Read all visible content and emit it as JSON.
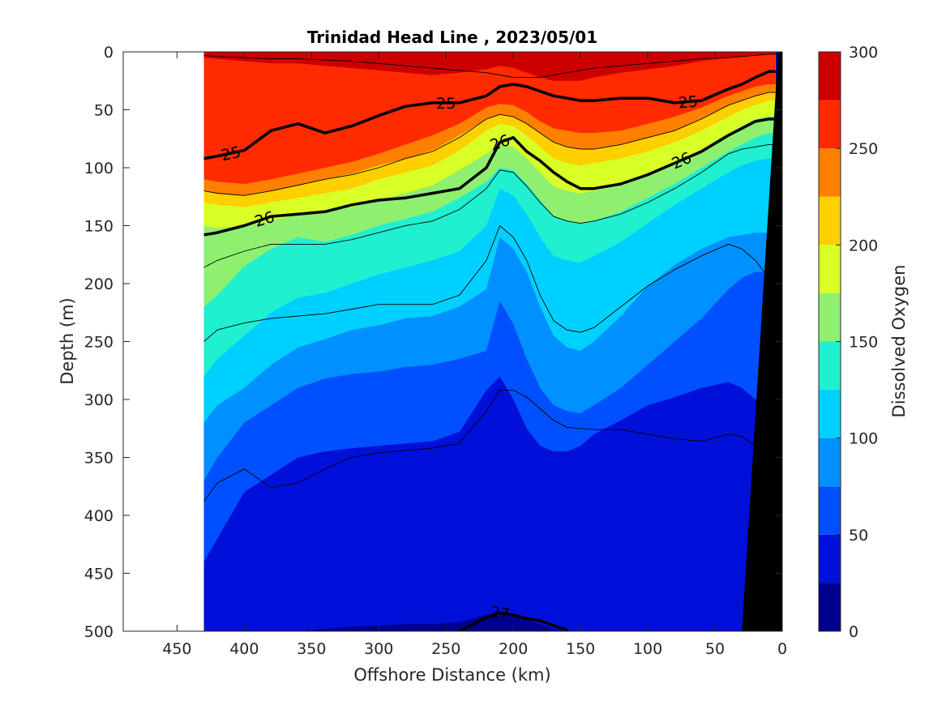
{
  "chart_data": {
    "type": "heatmap",
    "title": "Trinidad Head Line , 2023/05/01",
    "xlabel": "Offshore Distance (km)",
    "ylabel": "Depth (m)",
    "colorbar_label": "Dissolved Oxygen",
    "xlim": [
      490,
      0
    ],
    "ylim": [
      0,
      500
    ],
    "x_ticks": [
      450,
      400,
      350,
      300,
      250,
      200,
      150,
      100,
      50,
      0
    ],
    "x_tick_labels": [
      "450",
      "400",
      "350",
      "300",
      "250",
      "200",
      "150",
      "100",
      "50",
      "0"
    ],
    "y_ticks": [
      0,
      50,
      100,
      150,
      200,
      250,
      300,
      350,
      400,
      450,
      500
    ],
    "y_tick_labels": [
      "0",
      "50",
      "100",
      "150",
      "200",
      "250",
      "300",
      "350",
      "400",
      "450",
      "500"
    ],
    "colorbar_ticks": [
      0,
      50,
      100,
      150,
      200,
      250,
      300
    ],
    "colorbar_tick_labels": [
      "0",
      "50",
      "100",
      "150",
      "200",
      "250",
      "300"
    ],
    "color_levels": [
      0,
      25,
      50,
      75,
      100,
      125,
      150,
      175,
      200,
      225,
      250,
      275,
      300
    ],
    "level_colors": [
      "#00008f",
      "#0010d9",
      "#0050ff",
      "#0090ff",
      "#00d0ff",
      "#20f0d0",
      "#8ff070",
      "#d8ff26",
      "#ffd000",
      "#ff8000",
      "#ff2a00",
      "#cc0000"
    ],
    "data_xrange": [
      430,
      0
    ],
    "profile_distances": [
      430,
      420,
      400,
      380,
      360,
      340,
      320,
      300,
      280,
      260,
      240,
      220,
      210,
      200,
      190,
      180,
      170,
      160,
      150,
      140,
      120,
      100,
      80,
      60,
      40,
      30,
      20,
      10,
      5
    ],
    "oxygen_isolines": [
      {
        "level": 275,
        "depths": [
          5,
          6,
          8,
          10,
          10,
          12,
          14,
          16,
          18,
          20,
          18,
          15,
          12,
          14,
          18,
          22,
          25,
          25,
          25,
          22,
          18,
          15,
          12,
          8,
          5,
          4,
          3,
          2,
          2
        ]
      },
      {
        "level": 250,
        "depths": [
          110,
          112,
          114,
          110,
          105,
          100,
          95,
          88,
          80,
          72,
          62,
          48,
          45,
          46,
          52,
          60,
          66,
          68,
          70,
          70,
          68,
          62,
          56,
          48,
          38,
          34,
          30,
          28,
          28
        ]
      },
      {
        "level": 225,
        "depths": [
          120,
          122,
          124,
          120,
          115,
          110,
          105,
          98,
          92,
          85,
          72,
          58,
          54,
          56,
          62,
          70,
          78,
          82,
          84,
          84,
          80,
          74,
          68,
          58,
          46,
          42,
          38,
          35,
          35
        ]
      },
      {
        "level": 200,
        "depths": [
          130,
          132,
          134,
          130,
          126,
          122,
          118,
          110,
          104,
          98,
          85,
          68,
          62,
          64,
          72,
          82,
          92,
          96,
          98,
          96,
          92,
          86,
          78,
          68,
          56,
          50,
          46,
          42,
          42
        ]
      },
      {
        "level": 175,
        "depths": [
          150,
          152,
          150,
          146,
          140,
          138,
          134,
          128,
          122,
          115,
          102,
          88,
          80,
          82,
          92,
          104,
          116,
          120,
          122,
          120,
          114,
          106,
          96,
          84,
          70,
          64,
          58,
          55,
          55
        ]
      },
      {
        "level": 150,
        "depths": [
          220,
          210,
          185,
          170,
          160,
          164,
          158,
          150,
          144,
          138,
          126,
          112,
          100,
          102,
          114,
          128,
          142,
          146,
          148,
          146,
          138,
          126,
          114,
          100,
          86,
          80,
          74,
          70,
          70
        ]
      },
      {
        "level": 125,
        "depths": [
          280,
          265,
          245,
          225,
          212,
          208,
          200,
          192,
          186,
          180,
          172,
          150,
          118,
          124,
          140,
          160,
          176,
          180,
          182,
          176,
          164,
          148,
          132,
          118,
          104,
          98,
          94,
          92,
          92
        ]
      },
      {
        "level": 100,
        "depths": [
          320,
          305,
          290,
          270,
          255,
          248,
          240,
          236,
          230,
          228,
          220,
          205,
          160,
          170,
          190,
          220,
          245,
          255,
          258,
          250,
          228,
          202,
          184,
          170,
          160,
          158,
          156,
          156,
          156
        ]
      },
      {
        "level": 75,
        "depths": [
          370,
          350,
          320,
          305,
          290,
          282,
          278,
          276,
          272,
          270,
          265,
          258,
          215,
          235,
          265,
          290,
          305,
          310,
          312,
          305,
          290,
          270,
          250,
          230,
          205,
          195,
          190,
          190,
          190
        ]
      },
      {
        "level": 50,
        "depths": [
          440,
          420,
          380,
          365,
          350,
          345,
          342,
          340,
          338,
          336,
          328,
          292,
          280,
          300,
          325,
          340,
          345,
          345,
          340,
          330,
          318,
          305,
          298,
          290,
          285,
          290,
          300,
          310,
          310
        ]
      },
      {
        "level": 25,
        "depths": [
          520,
          515,
          510,
          505,
          500,
          498,
          496,
          495,
          494,
          494,
          492,
          486,
          484,
          486,
          490,
          494,
          498,
          500,
          505,
          510,
          512,
          512,
          512,
          512,
          512,
          512,
          512,
          512,
          512
        ]
      }
    ],
    "density_contours": [
      {
        "level": 25,
        "label": "25",
        "label_x": [
          410,
          250,
          70
        ],
        "depths": [
          92,
          90,
          85,
          68,
          62,
          70,
          64,
          55,
          47,
          44,
          44,
          38,
          30,
          28,
          30,
          34,
          38,
          40,
          42,
          42,
          40,
          40,
          44,
          42,
          32,
          28,
          22,
          17,
          17
        ]
      },
      {
        "level": 26,
        "label": "26",
        "label_x": [
          385,
          210,
          75
        ],
        "depths": [
          158,
          156,
          150,
          142,
          140,
          138,
          132,
          128,
          126,
          122,
          118,
          100,
          78,
          74,
          86,
          94,
          104,
          112,
          118,
          118,
          114,
          106,
          96,
          86,
          72,
          66,
          60,
          58,
          58
        ]
      },
      {
        "level": 27,
        "label": "27",
        "label_x": [
          210
        ],
        "depths": [
          540,
          540,
          540,
          540,
          540,
          540,
          540,
          540,
          540,
          540,
          500,
          488,
          484,
          486,
          489,
          491,
          495,
          499,
          540,
          540,
          540,
          540,
          540,
          540,
          540,
          540,
          540,
          540,
          540
        ]
      }
    ],
    "thin_density_contours": [
      {
        "depths": [
          3,
          4,
          5,
          6,
          6,
          7,
          8,
          10,
          12,
          14,
          16,
          18,
          20,
          22,
          22,
          22,
          20,
          18,
          16,
          14,
          12,
          10,
          8,
          6,
          5,
          4,
          3,
          2,
          2
        ]
      },
      {
        "depths": [
          120,
          122,
          124,
          120,
          115,
          110,
          106,
          100,
          92,
          86,
          74,
          58,
          54,
          56,
          62,
          70,
          78,
          82,
          84,
          84,
          80,
          74,
          68,
          58,
          46,
          42,
          38,
          35,
          35
        ]
      },
      {
        "depths": [
          186,
          180,
          172,
          166,
          166,
          166,
          162,
          156,
          150,
          146,
          136,
          118,
          102,
          104,
          116,
          130,
          142,
          146,
          148,
          146,
          140,
          130,
          118,
          104,
          88,
          84,
          82,
          80,
          80
        ]
      },
      {
        "depths": [
          250,
          240,
          234,
          230,
          228,
          226,
          222,
          218,
          218,
          218,
          210,
          180,
          150,
          160,
          180,
          210,
          232,
          240,
          242,
          238,
          220,
          202,
          188,
          176,
          166,
          170,
          180,
          195,
          195
        ]
      },
      {
        "depths": [
          388,
          372,
          360,
          376,
          372,
          360,
          350,
          346,
          344,
          342,
          338,
          310,
          292,
          292,
          298,
          308,
          318,
          324,
          325,
          326,
          326,
          330,
          334,
          336,
          330,
          332,
          340,
          350,
          350
        ]
      }
    ],
    "bathymetry_surface_km": 3,
    "bathymetry_bottom_km": 30
  }
}
